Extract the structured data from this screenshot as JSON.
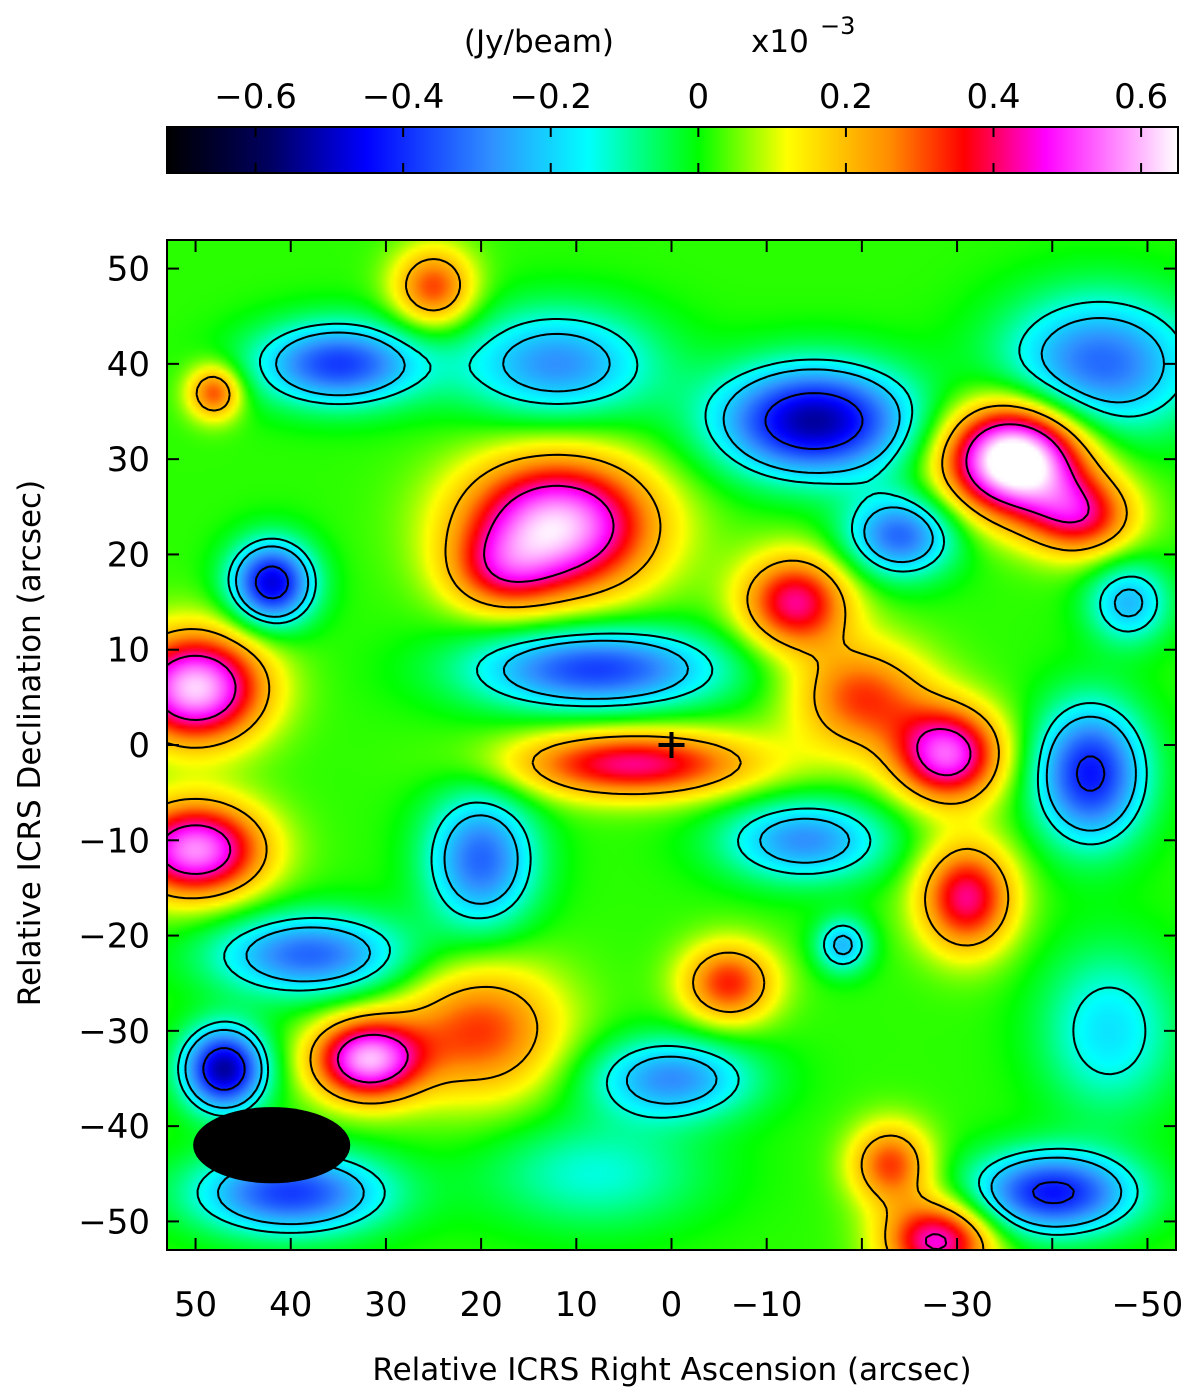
{
  "chart_data": {
    "type": "heatmap",
    "title": "",
    "xlabel": "Relative ICRS Right Ascension (arcsec)",
    "ylabel": "Relative ICRS Declination (arcsec)",
    "xlim": [
      53,
      -53
    ],
    "ylim": [
      -53,
      53
    ],
    "x_ticks": [
      50,
      40,
      30,
      20,
      10,
      0,
      -10,
      -20,
      -30,
      -40,
      -50
    ],
    "x_tick_labels": [
      "50",
      "40",
      "30",
      "20",
      "10",
      "0",
      "−10",
      "",
      "−30",
      "",
      "−50"
    ],
    "y_ticks": [
      50,
      40,
      30,
      20,
      10,
      0,
      -10,
      -20,
      -30,
      -40,
      -50
    ],
    "y_tick_labels": [
      "50",
      "40",
      "30",
      "20",
      "10",
      "0",
      "−10",
      "−20",
      "−30",
      "−40",
      "−50"
    ],
    "colorbar": {
      "label": "(Jy/beam)",
      "scale_text": "x10",
      "scale_exp": "−3",
      "range": [
        -0.72,
        0.65
      ],
      "ticks": [
        -0.6,
        -0.4,
        -0.2,
        0,
        0.2,
        0.4,
        0.6
      ],
      "tick_labels": [
        "−0.6",
        "−0.4",
        "−0.2",
        "0",
        "0.2",
        "0.4",
        "0.6"
      ],
      "colormap": [
        {
          "v": -0.72,
          "c": "#000000"
        },
        {
          "v": -0.58,
          "c": "#000060"
        },
        {
          "v": -0.45,
          "c": "#0000ff"
        },
        {
          "v": -0.28,
          "c": "#3090ff"
        },
        {
          "v": -0.15,
          "c": "#00ffff"
        },
        {
          "v": 0.0,
          "c": "#00ff00"
        },
        {
          "v": 0.12,
          "c": "#ffff00"
        },
        {
          "v": 0.26,
          "c": "#ff8c00"
        },
        {
          "v": 0.36,
          "c": "#ff0000"
        },
        {
          "v": 0.47,
          "c": "#ff00ff"
        },
        {
          "v": 0.65,
          "c": "#ffffff"
        }
      ]
    },
    "background_level": 0.02,
    "sources": [
      {
        "ra": 50,
        "dec": 6,
        "amp": 0.6,
        "sra": 5,
        "sdec": 4
      },
      {
        "ra": 50,
        "dec": -11,
        "amp": 0.55,
        "sra": 5,
        "sdec": 3.5
      },
      {
        "ra": 12,
        "dec": 23,
        "amp": 0.6,
        "sra": 7,
        "sdec": 5
      },
      {
        "ra": 18,
        "dec": 18,
        "amp": 0.2,
        "sra": 4,
        "sdec": 3
      },
      {
        "ra": 4,
        "dec": -2,
        "amp": 0.4,
        "sra": 9,
        "sdec": 2.5
      },
      {
        "ra": -13,
        "dec": 15,
        "amp": 0.4,
        "sra": 4,
        "sdec": 3.5
      },
      {
        "ra": -20,
        "dec": 5,
        "amp": 0.3,
        "sra": 5,
        "sdec": 4
      },
      {
        "ra": -29,
        "dec": -1,
        "amp": 0.5,
        "sra": 4,
        "sdec": 3.5
      },
      {
        "ra": -31,
        "dec": -16,
        "amp": 0.4,
        "sra": 3.5,
        "sdec": 4
      },
      {
        "ra": -36,
        "dec": 30,
        "amp": 0.75,
        "sra": 5,
        "sdec": 4
      },
      {
        "ra": -43,
        "dec": 24,
        "amp": 0.35,
        "sra": 4,
        "sdec": 3
      },
      {
        "ra": 32,
        "dec": -33,
        "amp": 0.55,
        "sra": 4,
        "sdec": 3
      },
      {
        "ra": 20,
        "dec": -30,
        "amp": 0.3,
        "sra": 6,
        "sdec": 5
      },
      {
        "ra": 25,
        "dec": 48,
        "amp": 0.3,
        "sra": 3,
        "sdec": 3
      },
      {
        "ra": -6,
        "dec": -25,
        "amp": 0.32,
        "sra": 3.5,
        "sdec": 3
      },
      {
        "ra": -23,
        "dec": -44,
        "amp": 0.3,
        "sra": 3,
        "sdec": 3
      },
      {
        "ra": -28,
        "dec": -52,
        "amp": 0.45,
        "sra": 4,
        "sdec": 3
      },
      {
        "ra": 48,
        "dec": 37,
        "amp": 0.3,
        "sra": 2,
        "sdec": 2
      },
      {
        "ra": -15,
        "dec": 34,
        "amp": -0.55,
        "sra": 7,
        "sdec": 4
      },
      {
        "ra": -24,
        "dec": 22,
        "amp": -0.35,
        "sra": 4,
        "sdec": 3
      },
      {
        "ra": 8,
        "dec": 8,
        "amp": -0.4,
        "sra": 9,
        "sdec": 3
      },
      {
        "ra": 42,
        "dec": 17,
        "amp": -0.5,
        "sra": 3,
        "sdec": 3
      },
      {
        "ra": 35,
        "dec": 40,
        "amp": -0.4,
        "sra": 6,
        "sdec": 3
      },
      {
        "ra": 12,
        "dec": 40,
        "amp": -0.3,
        "sra": 7,
        "sdec": 4
      },
      {
        "ra": -45,
        "dec": 40,
        "amp": -0.35,
        "sra": 7,
        "sdec": 5
      },
      {
        "ra": -44,
        "dec": -3,
        "amp": -0.45,
        "sra": 4,
        "sdec": 5
      },
      {
        "ra": 20,
        "dec": -12,
        "amp": -0.35,
        "sra": 4,
        "sdec": 5
      },
      {
        "ra": -14,
        "dec": -10,
        "amp": -0.3,
        "sra": 6,
        "sdec": 3
      },
      {
        "ra": 38,
        "dec": -22,
        "amp": -0.35,
        "sra": 7,
        "sdec": 3
      },
      {
        "ra": 47,
        "dec": -34,
        "amp": -0.55,
        "sra": 3,
        "sdec": 3
      },
      {
        "ra": 40,
        "dec": -47,
        "amp": -0.4,
        "sra": 7,
        "sdec": 3
      },
      {
        "ra": -40,
        "dec": -47,
        "amp": -0.45,
        "sra": 6,
        "sdec": 3
      },
      {
        "ra": 0,
        "dec": -35,
        "amp": -0.3,
        "sra": 6,
        "sdec": 3
      },
      {
        "ra": -46,
        "dec": -30,
        "amp": -0.2,
        "sra": 5,
        "sdec": 6
      },
      {
        "ra": 8,
        "dec": -45,
        "amp": -0.15,
        "sra": 8,
        "sdec": 4
      },
      {
        "ra": -48,
        "dec": 15,
        "amp": -0.25,
        "sra": 3,
        "sdec": 3
      },
      {
        "ra": -18,
        "dec": -21,
        "amp": -0.25,
        "sra": 2,
        "sdec": 2
      }
    ],
    "contour_levels": [
      -0.4,
      -0.2,
      -0.13,
      0.2,
      0.44
    ],
    "contour_styles": [
      "dashed",
      "dashed",
      "dashdot",
      "solid",
      "solid"
    ],
    "markers": [
      {
        "symbol": "+",
        "ra": 0,
        "dec": 0
      }
    ],
    "beam": {
      "ra": 42,
      "dec": -42,
      "major_arcsec": 16.5,
      "minor_arcsec": 8,
      "pa_deg": 90,
      "fill": "#000000"
    },
    "grid": false,
    "legend": "none"
  }
}
